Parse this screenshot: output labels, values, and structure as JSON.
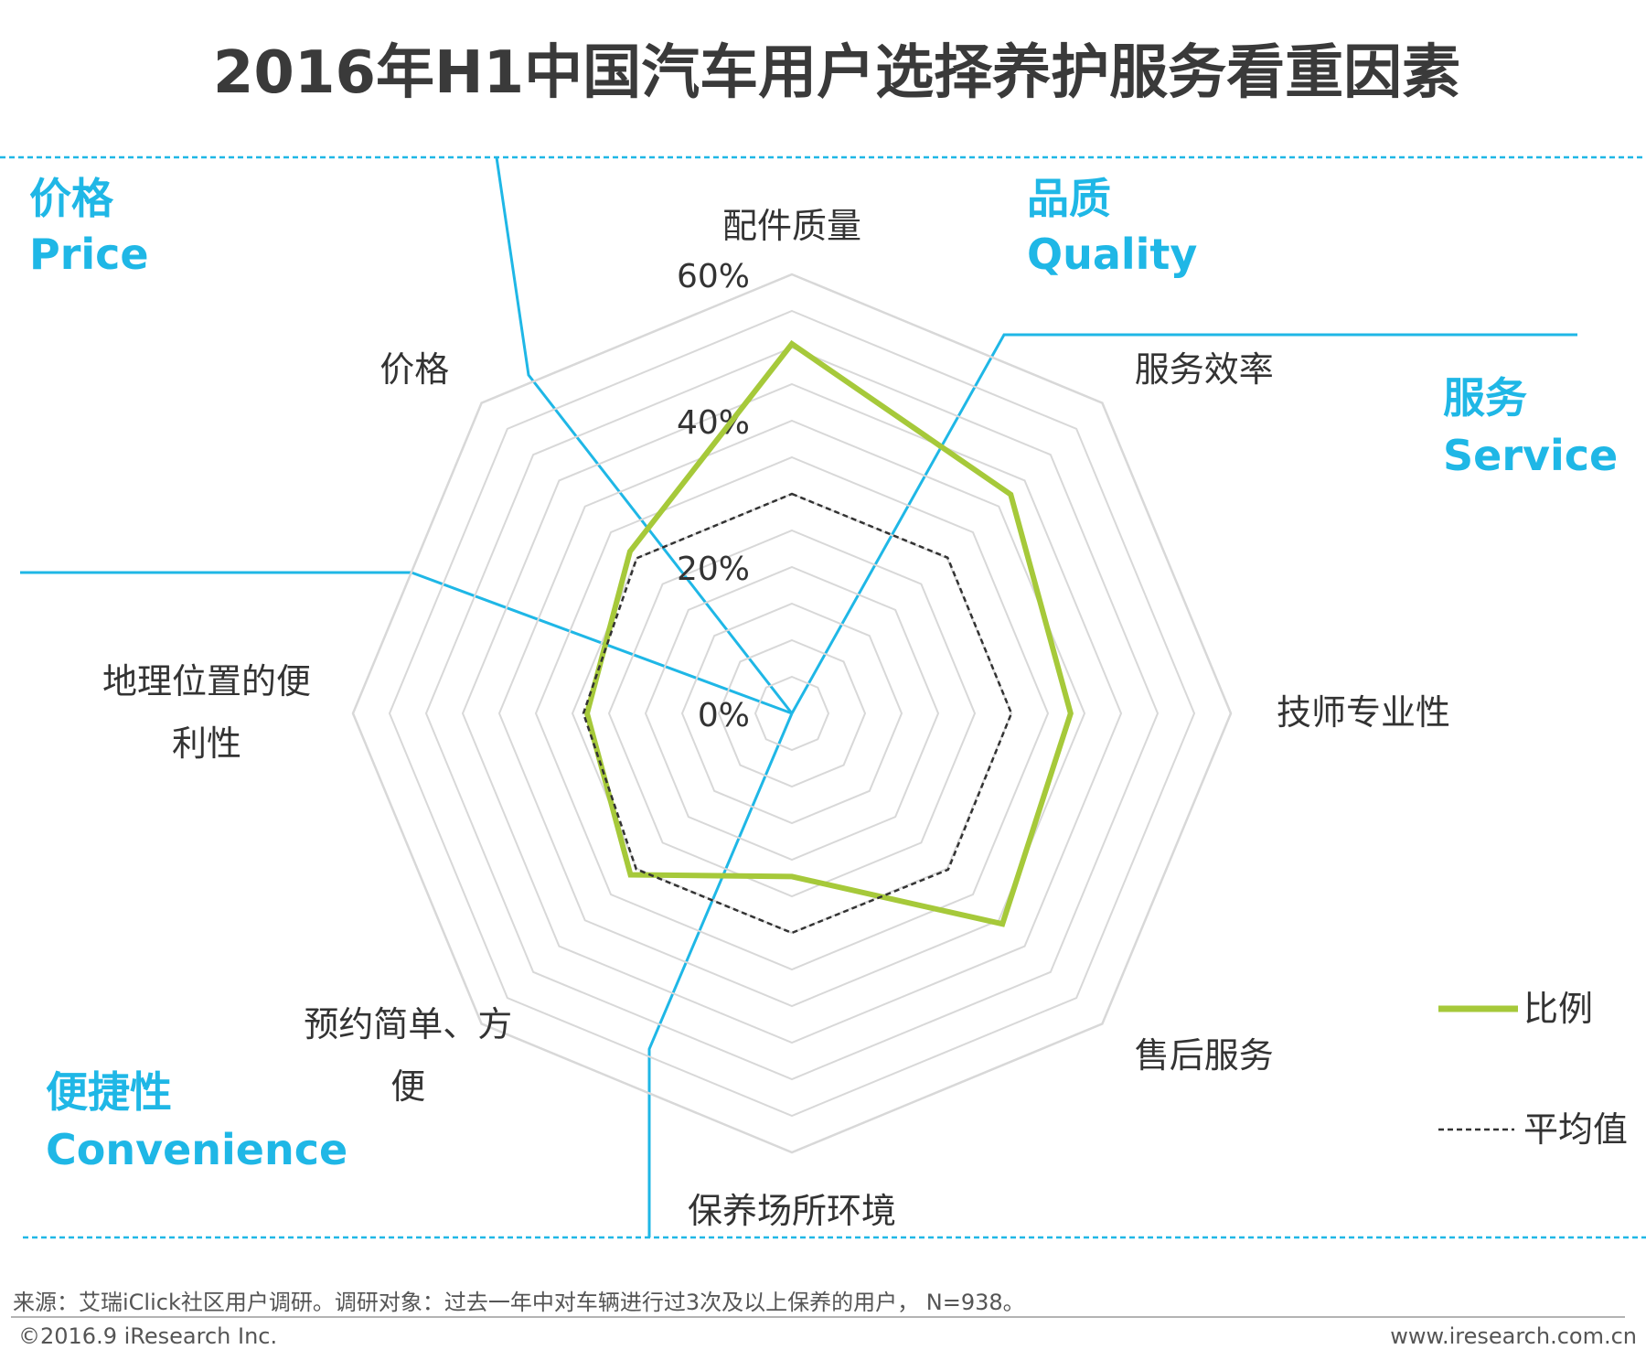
{
  "title": "2016年H1中国汽车用户选择养护服务看重因素",
  "groups": {
    "price": {
      "cn": "价格",
      "en": "Price"
    },
    "quality": {
      "cn": "品质",
      "en": "Quality"
    },
    "service": {
      "cn": "服务",
      "en": "Service"
    },
    "convenience": {
      "cn": "便捷性",
      "en": "Convenience"
    }
  },
  "legend": {
    "ratio": "比例",
    "average": "平均值"
  },
  "footer": {
    "source": "来源：艾瑞iClick社区用户调研。调研对象：过去一年中对车辆进行过3次及以上保养的用户， N=938。",
    "copyright": "©2016.9 iResearch Inc.",
    "website": "www.iresearch.com.cn"
  },
  "colors": {
    "ratio": "#a6c93a",
    "average": "#333333",
    "accent": "#1fb7e6",
    "grid": "#d8d8d8"
  },
  "chart_data": {
    "type": "radar",
    "title": "2016年H1中国汽车用户选择养护服务看重因素",
    "axes": [
      {
        "label_lines": [
          "配件质量"
        ]
      },
      {
        "label_lines": [
          "服务效率"
        ]
      },
      {
        "label_lines": [
          "技师专业性"
        ]
      },
      {
        "label_lines": [
          "售后服务"
        ]
      },
      {
        "label_lines": [
          "保养场所环境"
        ]
      },
      {
        "label_lines": [
          "预约简单、方",
          "便"
        ]
      },
      {
        "label_lines": [
          "地理位置的便",
          "利性"
        ]
      },
      {
        "label_lines": [
          "价格"
        ]
      }
    ],
    "ticks": [
      "0%",
      "20%",
      "40%",
      "60%"
    ],
    "tick_values": [
      0,
      20,
      40,
      60
    ],
    "range": [
      0,
      60
    ],
    "grid": true,
    "legend_position": "right",
    "series": [
      {
        "name": "比例",
        "values": [
          50.5,
          42.3,
          38.1,
          40.7,
          22.3,
          31.2,
          28.0,
          31.3
        ]
      },
      {
        "name": "平均值",
        "values": [
          30.0,
          30.1,
          30.0,
          30.2,
          30.0,
          30.1,
          28.5,
          30.0
        ]
      }
    ]
  }
}
